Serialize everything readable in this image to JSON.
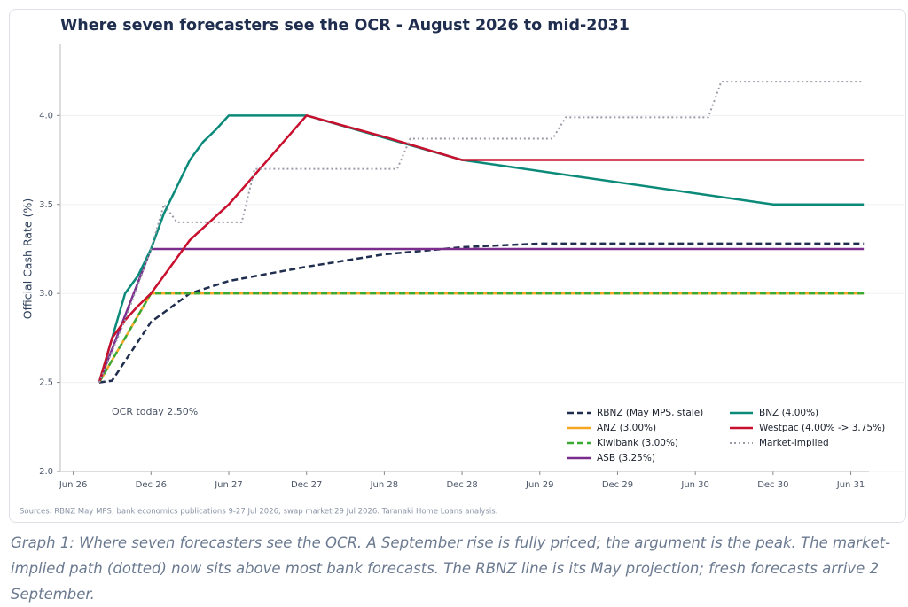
{
  "chart_data": {
    "type": "line",
    "title": "Where seven forecasters see the OCR - August 2026 to mid-2031",
    "ylabel": "Official Cash Rate (%)",
    "annotation": "OCR today 2.50%",
    "note": "Sources: RBNZ May MPS; bank economics publications 9-27 Jul 2026; swap market 29 Jul 2026. Taranaki Home Loans analysis.",
    "xlim": [
      -1,
      61.4
    ],
    "xticks": [
      {
        "value": 0,
        "label": "Jun 26"
      },
      {
        "value": 6,
        "label": "Dec 26"
      },
      {
        "value": 12,
        "label": "Jun 27"
      },
      {
        "value": 18,
        "label": "Dec 27"
      },
      {
        "value": 24,
        "label": "Jun 28"
      },
      {
        "value": 30,
        "label": "Dec 28"
      },
      {
        "value": 36,
        "label": "Jun 29"
      },
      {
        "value": 42,
        "label": "Dec 29"
      },
      {
        "value": 48,
        "label": "Jun 30"
      },
      {
        "value": 54,
        "label": "Dec 30"
      },
      {
        "value": 60,
        "label": "Jun 31"
      }
    ],
    "ylim": [
      2,
      4.4
    ],
    "yticks": [
      {
        "value": 2,
        "label": "2.0"
      },
      2.5,
      {
        "value": 3,
        "label": "3.0"
      },
      3.5,
      {
        "value": 4,
        "label": "4.0"
      }
    ],
    "grid": "y",
    "legend": "lower right",
    "series": [
      {
        "name": "RBNZ (May MPS, stale)",
        "color": "#1f2d4e",
        "style": "dashed",
        "x": [
          2,
          3,
          6,
          9,
          12,
          18,
          24,
          30,
          36,
          61
        ],
        "values": [
          2.5,
          2.51,
          2.84,
          3.0,
          3.07,
          3.15,
          3.22,
          3.26,
          3.28,
          3.28
        ]
      },
      {
        "name": "ANZ (3.00%)",
        "color": "#f5a623",
        "style": "solid",
        "x": [
          2,
          6,
          61
        ],
        "values": [
          2.5,
          3.0,
          3.0
        ]
      },
      {
        "name": "Kiwibank (3.00%)",
        "color": "#3aaa35",
        "style": "dashed",
        "x": [
          2,
          6,
          61
        ],
        "values": [
          2.5,
          3.0,
          3.0
        ]
      },
      {
        "name": "ASB (3.25%)",
        "color": "#7b2d8e",
        "style": "solid",
        "x": [
          2,
          6,
          61
        ],
        "values": [
          2.5,
          3.25,
          3.25
        ]
      },
      {
        "name": "BNZ (4.00%)",
        "color": "#0b8a7a",
        "style": "solid",
        "x": [
          2,
          3,
          4,
          5,
          6,
          7,
          8,
          9,
          10,
          11,
          12,
          18,
          30,
          54,
          61
        ],
        "values": [
          2.5,
          2.75,
          3.0,
          3.1,
          3.25,
          3.45,
          3.6,
          3.75,
          3.85,
          3.92,
          4.0,
          4.0,
          3.75,
          3.5,
          3.5
        ]
      },
      {
        "name": "Westpac (4.00% -> 3.75%)",
        "color": "#c8102e",
        "style": "solid",
        "x": [
          2,
          3,
          4,
          5,
          6,
          7,
          8,
          9,
          12,
          15,
          18,
          24,
          30,
          61
        ],
        "values": [
          2.5,
          2.75,
          2.85,
          2.93,
          3.0,
          3.1,
          3.2,
          3.3,
          3.5,
          3.75,
          4.0,
          3.88,
          3.75,
          3.75
        ]
      },
      {
        "name": "Market-implied",
        "color": "#9a9aa8",
        "style": "dotted",
        "x": [
          2,
          4,
          5,
          6,
          7,
          8,
          13,
          14,
          25,
          26,
          37,
          38,
          49,
          50,
          61
        ],
        "values": [
          2.5,
          2.85,
          3.05,
          3.25,
          3.5,
          3.4,
          3.4,
          3.7,
          3.7,
          3.87,
          3.87,
          3.99,
          3.99,
          4.19,
          4.19
        ]
      }
    ]
  },
  "caption": "Graph 1: Where seven forecasters see the OCR. A September rise is fully priced; the argument is the peak. The market-implied path (dotted) now sits above most bank forecasts. The RBNZ line is its May projection; fresh forecasts arrive 2 September."
}
